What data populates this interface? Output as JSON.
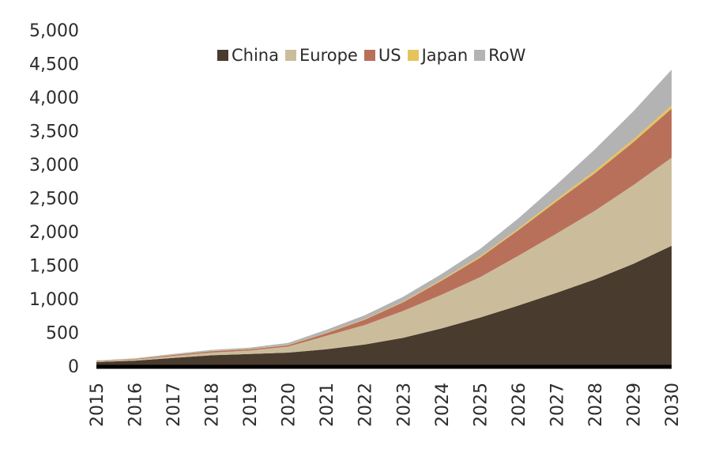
{
  "chart_data": {
    "type": "area",
    "stacked": true,
    "title": "",
    "xlabel": "",
    "ylabel": "",
    "x": [
      "2015",
      "2016",
      "2017",
      "2018",
      "2019",
      "2020",
      "2021",
      "2022",
      "2023",
      "2024",
      "2025",
      "2026",
      "2027",
      "2028",
      "2029",
      "2030"
    ],
    "ylim": [
      0,
      5000
    ],
    "yticks": [
      "0",
      "500",
      "1,000",
      "1,500",
      "2,000",
      "2,500",
      "3,000",
      "3,500",
      "4,000",
      "4,500",
      "5,000"
    ],
    "grid": false,
    "legend_position": "top-center",
    "series": [
      {
        "name": "China",
        "color": "#4a3b2f",
        "values": [
          60,
          80,
          120,
          160,
          180,
          200,
          250,
          320,
          420,
          560,
          720,
          900,
          1090,
          1290,
          1520,
          1790
        ]
      },
      {
        "name": "Europe",
        "color": "#cbbd9b",
        "values": [
          10,
          15,
          30,
          40,
          50,
          90,
          200,
          290,
          400,
          500,
          600,
          740,
          880,
          1020,
          1170,
          1310
        ]
      },
      {
        "name": "US",
        "color": "#b9705a",
        "values": [
          5,
          10,
          15,
          20,
          20,
          20,
          40,
          80,
          130,
          210,
          290,
          380,
          480,
          560,
          640,
          730
        ]
      },
      {
        "name": "Japan",
        "color": "#e6c45c",
        "values": [
          2,
          2,
          3,
          4,
          4,
          4,
          5,
          7,
          10,
          15,
          20,
          25,
          30,
          35,
          40,
          50
        ]
      },
      {
        "name": "RoW",
        "color": "#b3b3b3",
        "values": [
          5,
          8,
          12,
          16,
          20,
          30,
          45,
          60,
          70,
          85,
          110,
          150,
          220,
          320,
          420,
          530
        ]
      }
    ]
  }
}
